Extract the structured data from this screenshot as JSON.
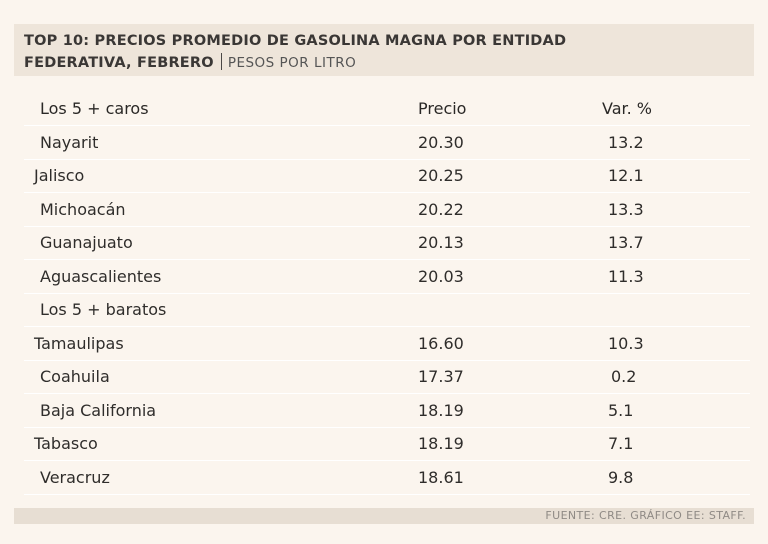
{
  "header": {
    "title_line1": "TOP 10: PRECIOS PROMEDIO DE GASOLINA MAGNA POR ENTIDAD",
    "title_line2_bold": "FEDERATIVA, FEBRERO",
    "units": "PESOS POR LITRO"
  },
  "table": {
    "columns": [
      "Los 5 + caros",
      "Precio",
      "Var. %"
    ],
    "rows_caros": [
      {
        "name": "Nayarit",
        "price": "20.30",
        "var": "13.2"
      },
      {
        "name": "Jalisco",
        "price": "20.25",
        "var": "12.1"
      },
      {
        "name": "Michoacán",
        "price": "20.22",
        "var": "13.3"
      },
      {
        "name": "Guanajuato",
        "price": "20.13",
        "var": "13.7"
      },
      {
        "name": "Aguascalientes",
        "price": "20.03",
        "var": "11.3"
      }
    ],
    "section_baratos": "Los 5 + baratos",
    "rows_baratos": [
      {
        "name": "Tamaulipas",
        "price": "16.60",
        "var": "10.3"
      },
      {
        "name": "Coahuila",
        "price": "17.37",
        "var": "0.2"
      },
      {
        "name": "Baja California",
        "price": "18.19",
        "var": "5.1"
      },
      {
        "name": "Tabasco",
        "price": "18.19",
        "var": "7.1"
      },
      {
        "name": "Veracruz",
        "price": "18.61",
        "var": "9.8"
      }
    ]
  },
  "footer": {
    "source": "FUENTE: CRE. GRÁFICO EE: STAFF."
  }
}
